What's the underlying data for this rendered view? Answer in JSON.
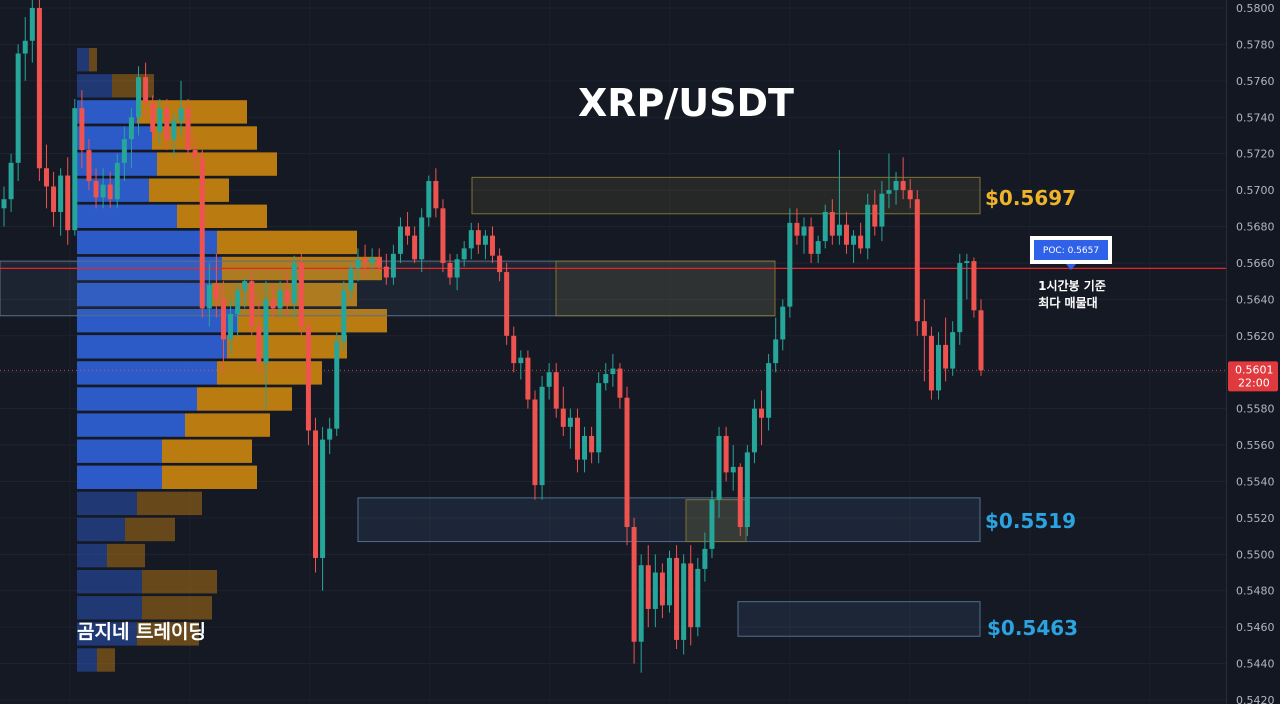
{
  "title": "XRP/USDT",
  "brand": "곰지네 트레이딩",
  "colors": {
    "background": "#151924",
    "bull": "#26a69a",
    "bear": "#ef5350",
    "resistance": "#f0b429",
    "support": "#2ba3e0",
    "poc_line": "#e5252a",
    "vp_blue": "#2f5fd6",
    "vp_orange": "#c9830f"
  },
  "annotations": {
    "resistance_label": "$0.5697",
    "support1_label": "$0.5519",
    "support2_label": "$0.5463",
    "poc_badge": "POC: 0.5657",
    "poc_note_line1": "1시간봉 기준",
    "poc_note_line2": "최다 매물대",
    "last_price": "0.5601",
    "last_time": "22:00"
  },
  "chart_data": {
    "type": "candlestick",
    "title": "XRP/USDT",
    "ylim": [
      0.542,
      0.581
    ],
    "y_ticks": [
      "0.5800",
      "0.5780",
      "0.5760",
      "0.5740",
      "0.5720",
      "0.5700",
      "0.5680",
      "0.5660",
      "0.5640",
      "0.5620",
      "0.5600",
      "0.5580",
      "0.5560",
      "0.5540",
      "0.5520",
      "0.5500",
      "0.5480",
      "0.5460",
      "0.5440",
      "0.5420"
    ],
    "levels": {
      "resistance": 0.5697,
      "poc": 0.5657,
      "support1": 0.5519,
      "support2": 0.5463,
      "last_price": 0.5601
    },
    "zones": [
      {
        "name": "resistance-zone",
        "low": 0.5687,
        "high": 0.5707
      },
      {
        "name": "poc-zone",
        "low": 0.5631,
        "high": 0.5661
      },
      {
        "name": "support1-zone",
        "low": 0.5507,
        "high": 0.5531
      },
      {
        "name": "support2-zone",
        "low": 0.5455,
        "high": 0.5474
      }
    ],
    "candles": [
      [
        0.569,
        0.5702,
        0.568,
        0.5695
      ],
      [
        0.5695,
        0.572,
        0.5688,
        0.5715
      ],
      [
        0.5715,
        0.578,
        0.5705,
        0.5775
      ],
      [
        0.5775,
        0.5795,
        0.576,
        0.5782
      ],
      [
        0.5782,
        0.581,
        0.577,
        0.58
      ],
      [
        0.58,
        0.581,
        0.5705,
        0.5712
      ],
      [
        0.5712,
        0.5725,
        0.569,
        0.5702
      ],
      [
        0.5702,
        0.571,
        0.568,
        0.5688
      ],
      [
        0.5688,
        0.5712,
        0.5675,
        0.5708
      ],
      [
        0.5708,
        0.5718,
        0.567,
        0.5678
      ],
      [
        0.5678,
        0.575,
        0.5675,
        0.5745
      ],
      [
        0.5745,
        0.5755,
        0.5712,
        0.5722
      ],
      [
        0.5722,
        0.5728,
        0.57,
        0.5705
      ],
      [
        0.5705,
        0.5712,
        0.569,
        0.5696
      ],
      [
        0.5696,
        0.5712,
        0.569,
        0.5703
      ],
      [
        0.5703,
        0.571,
        0.569,
        0.5695
      ],
      [
        0.5695,
        0.572,
        0.569,
        0.5715
      ],
      [
        0.5715,
        0.5735,
        0.5705,
        0.5728
      ],
      [
        0.5728,
        0.5745,
        0.5712,
        0.574
      ],
      [
        0.574,
        0.5768,
        0.573,
        0.5762
      ],
      [
        0.5762,
        0.577,
        0.574,
        0.5748
      ],
      [
        0.5748,
        0.5752,
        0.5728,
        0.5732
      ],
      [
        0.5732,
        0.575,
        0.5725,
        0.5745
      ],
      [
        0.5745,
        0.575,
        0.5722,
        0.5728
      ],
      [
        0.5728,
        0.5742,
        0.5718,
        0.5738
      ],
      [
        0.5738,
        0.576,
        0.573,
        0.5745
      ],
      [
        0.5745,
        0.575,
        0.5715,
        0.5722
      ],
      [
        0.5722,
        0.573,
        0.571,
        0.5718
      ],
      [
        0.5718,
        0.5722,
        0.563,
        0.5635
      ],
      [
        0.5635,
        0.566,
        0.5625,
        0.5648
      ],
      [
        0.5648,
        0.5665,
        0.563,
        0.564
      ],
      [
        0.564,
        0.565,
        0.56,
        0.5618
      ],
      [
        0.5618,
        0.564,
        0.561,
        0.5632
      ],
      [
        0.5632,
        0.5648,
        0.562,
        0.5645
      ],
      [
        0.5645,
        0.5652,
        0.5635,
        0.565
      ],
      [
        0.565,
        0.5655,
        0.562,
        0.5625
      ],
      [
        0.5625,
        0.564,
        0.56,
        0.5605
      ],
      [
        0.5605,
        0.565,
        0.558,
        0.564
      ],
      [
        0.564,
        0.5648,
        0.563,
        0.5635
      ],
      [
        0.5635,
        0.565,
        0.563,
        0.5645
      ],
      [
        0.5645,
        0.5655,
        0.5632,
        0.5638
      ],
      [
        0.5638,
        0.5664,
        0.563,
        0.566
      ],
      [
        0.566,
        0.5665,
        0.562,
        0.5625
      ],
      [
        0.5625,
        0.563,
        0.556,
        0.5568
      ],
      [
        0.5568,
        0.5575,
        0.549,
        0.5498
      ],
      [
        0.5498,
        0.557,
        0.548,
        0.5563
      ],
      [
        0.5563,
        0.5575,
        0.5555,
        0.5569
      ],
      [
        0.5569,
        0.5622,
        0.5565,
        0.5617
      ],
      [
        0.5617,
        0.565,
        0.5612,
        0.5645
      ],
      [
        0.5645,
        0.566,
        0.564,
        0.5657
      ],
      [
        0.5657,
        0.5668,
        0.565,
        0.5662
      ],
      [
        0.5662,
        0.567,
        0.5652,
        0.566
      ],
      [
        0.566,
        0.5668,
        0.5655,
        0.5663
      ],
      [
        0.5663,
        0.5668,
        0.5655,
        0.5658
      ],
      [
        0.5658,
        0.5665,
        0.5648,
        0.5652
      ],
      [
        0.5652,
        0.567,
        0.5648,
        0.5665
      ],
      [
        0.5665,
        0.5685,
        0.566,
        0.568
      ],
      [
        0.568,
        0.5688,
        0.567,
        0.5675
      ],
      [
        0.5675,
        0.568,
        0.566,
        0.5662
      ],
      [
        0.5662,
        0.569,
        0.5655,
        0.5685
      ],
      [
        0.5685,
        0.5708,
        0.568,
        0.5705
      ],
      [
        0.5705,
        0.5712,
        0.5685,
        0.569
      ],
      [
        0.569,
        0.5695,
        0.5655,
        0.566
      ],
      [
        0.566,
        0.5665,
        0.5648,
        0.5652
      ],
      [
        0.5652,
        0.5665,
        0.5645,
        0.5662
      ],
      [
        0.5662,
        0.5672,
        0.5658,
        0.5668
      ],
      [
        0.5668,
        0.5682,
        0.5662,
        0.5678
      ],
      [
        0.5678,
        0.5682,
        0.5665,
        0.567
      ],
      [
        0.567,
        0.5678,
        0.5662,
        0.5675
      ],
      [
        0.5675,
        0.568,
        0.566,
        0.5664
      ],
      [
        0.5664,
        0.5668,
        0.565,
        0.5655
      ],
      [
        0.5655,
        0.566,
        0.5615,
        0.562
      ],
      [
        0.562,
        0.5625,
        0.56,
        0.5605
      ],
      [
        0.5605,
        0.5612,
        0.5596,
        0.5608
      ],
      [
        0.5608,
        0.5612,
        0.558,
        0.5585
      ],
      [
        0.5585,
        0.559,
        0.553,
        0.5538
      ],
      [
        0.5538,
        0.5598,
        0.553,
        0.5592
      ],
      [
        0.5592,
        0.5605,
        0.5585,
        0.56
      ],
      [
        0.56,
        0.5605,
        0.5575,
        0.558
      ],
      [
        0.558,
        0.5592,
        0.5565,
        0.557
      ],
      [
        0.557,
        0.558,
        0.5558,
        0.5575
      ],
      [
        0.5575,
        0.558,
        0.5545,
        0.5552
      ],
      [
        0.5552,
        0.557,
        0.5545,
        0.5565
      ],
      [
        0.5565,
        0.557,
        0.555,
        0.5556
      ],
      [
        0.5556,
        0.56,
        0.555,
        0.5594
      ],
      [
        0.5594,
        0.5605,
        0.559,
        0.5599
      ],
      [
        0.5599,
        0.561,
        0.5592,
        0.5602
      ],
      [
        0.5602,
        0.5605,
        0.558,
        0.5586
      ],
      [
        0.5586,
        0.5592,
        0.5505,
        0.5515
      ],
      [
        0.5515,
        0.552,
        0.544,
        0.5452
      ],
      [
        0.5452,
        0.55,
        0.5435,
        0.5494
      ],
      [
        0.5494,
        0.5505,
        0.546,
        0.547
      ],
      [
        0.547,
        0.55,
        0.546,
        0.549
      ],
      [
        0.549,
        0.5495,
        0.5465,
        0.5472
      ],
      [
        0.5472,
        0.5502,
        0.5468,
        0.5498
      ],
      [
        0.5498,
        0.5505,
        0.5448,
        0.5453
      ],
      [
        0.5453,
        0.55,
        0.5445,
        0.5495
      ],
      [
        0.5495,
        0.5505,
        0.545,
        0.546
      ],
      [
        0.546,
        0.5498,
        0.5455,
        0.5492
      ],
      [
        0.5492,
        0.5512,
        0.5485,
        0.5503
      ],
      [
        0.5503,
        0.5535,
        0.5498,
        0.553
      ],
      [
        0.553,
        0.557,
        0.552,
        0.5565
      ],
      [
        0.5565,
        0.557,
        0.554,
        0.5545
      ],
      [
        0.5545,
        0.556,
        0.5535,
        0.5548
      ],
      [
        0.5548,
        0.555,
        0.551,
        0.5515
      ],
      [
        0.5515,
        0.556,
        0.551,
        0.5556
      ],
      [
        0.5556,
        0.5585,
        0.555,
        0.558
      ],
      [
        0.558,
        0.559,
        0.556,
        0.5575
      ],
      [
        0.5575,
        0.561,
        0.5568,
        0.5605
      ],
      [
        0.5605,
        0.563,
        0.56,
        0.5618
      ],
      [
        0.5618,
        0.564,
        0.5612,
        0.5636
      ],
      [
        0.5636,
        0.569,
        0.563,
        0.5682
      ],
      [
        0.5682,
        0.569,
        0.567,
        0.5675
      ],
      [
        0.5675,
        0.5685,
        0.5665,
        0.568
      ],
      [
        0.568,
        0.5685,
        0.566,
        0.5665
      ],
      [
        0.5665,
        0.5675,
        0.566,
        0.5672
      ],
      [
        0.5672,
        0.5692,
        0.5668,
        0.5688
      ],
      [
        0.5688,
        0.5695,
        0.567,
        0.5675
      ],
      [
        0.5675,
        0.5722,
        0.567,
        0.5681
      ],
      [
        0.5681,
        0.5688,
        0.5665,
        0.567
      ],
      [
        0.567,
        0.5678,
        0.566,
        0.5675
      ],
      [
        0.5675,
        0.5682,
        0.5665,
        0.5668
      ],
      [
        0.5668,
        0.5698,
        0.5662,
        0.5692
      ],
      [
        0.5692,
        0.57,
        0.5675,
        0.568
      ],
      [
        0.568,
        0.5705,
        0.5672,
        0.5698
      ],
      [
        0.5698,
        0.572,
        0.569,
        0.57
      ],
      [
        0.57,
        0.571,
        0.5692,
        0.5705
      ],
      [
        0.5705,
        0.5718,
        0.5695,
        0.57
      ],
      [
        0.57,
        0.5706,
        0.569,
        0.5695
      ],
      [
        0.5695,
        0.57,
        0.562,
        0.5628
      ],
      [
        0.5628,
        0.564,
        0.5595,
        0.562
      ],
      [
        0.562,
        0.5625,
        0.5585,
        0.559
      ],
      [
        0.559,
        0.5622,
        0.5585,
        0.5615
      ],
      [
        0.5615,
        0.563,
        0.5595,
        0.5602
      ],
      [
        0.5602,
        0.5628,
        0.5598,
        0.5622
      ],
      [
        0.5622,
        0.5665,
        0.5615,
        0.566
      ],
      [
        0.566,
        0.5665,
        0.564,
        0.5661
      ],
      [
        0.5661,
        0.5663,
        0.563,
        0.5634
      ],
      [
        0.5634,
        0.564,
        0.5598,
        0.5601
      ]
    ]
  }
}
